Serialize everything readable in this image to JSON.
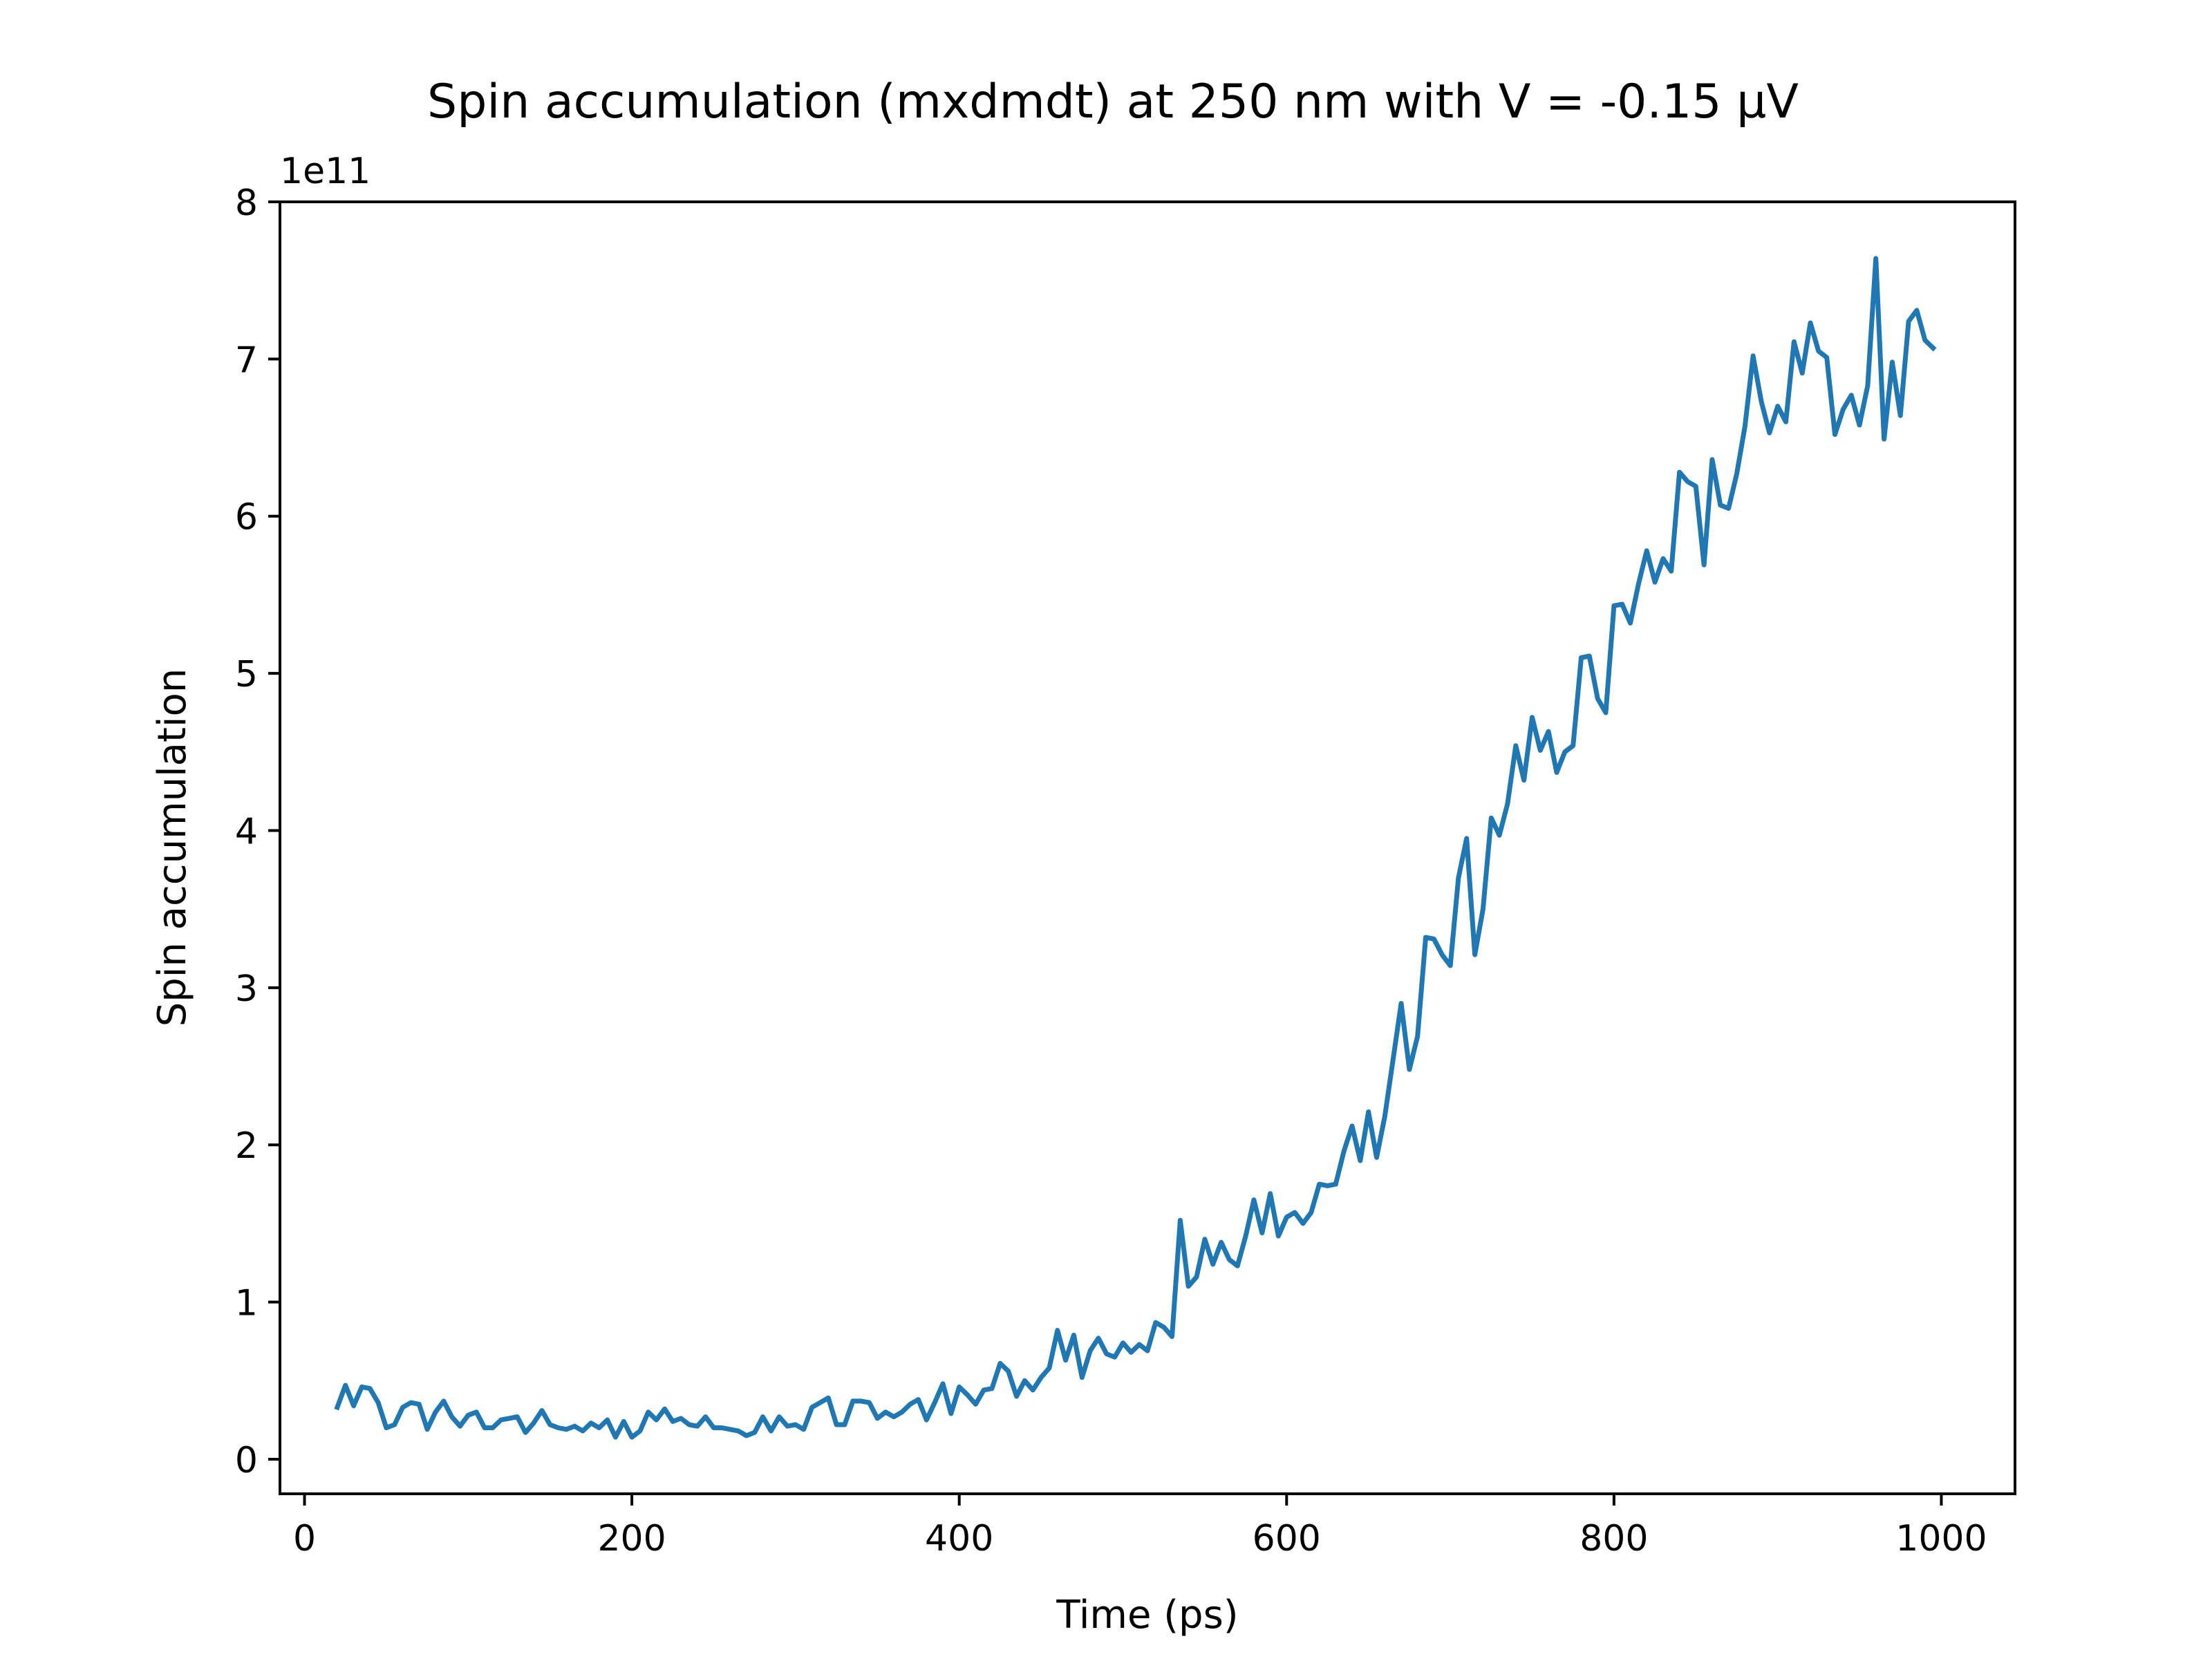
{
  "chart_data": {
    "type": "line",
    "title": "Spin accumulation (mxdmdt) at 250 nm with V = -0.15 µV",
    "xlabel": "Time (ps)",
    "ylabel": "Spin accumulation",
    "y_offset_label": "1e11",
    "xlim": [
      -15,
      1045
    ],
    "ylim": [
      -0.22,
      8.0
    ],
    "xticks": [
      0,
      200,
      400,
      600,
      800,
      1000
    ],
    "xtick_labels": [
      "0",
      "200",
      "400",
      "600",
      "800",
      "1000"
    ],
    "yticks": [
      0,
      1,
      2,
      3,
      4,
      5,
      6,
      7,
      8
    ],
    "ytick_labels": [
      "0",
      "1",
      "2",
      "3",
      "4",
      "5",
      "6",
      "7",
      "8"
    ],
    "grid": false,
    "colors": {
      "line": "#1f77b4",
      "axes": "#000000"
    },
    "series": [
      {
        "x": [
          20,
          25,
          30,
          35,
          40,
          45,
          50,
          55,
          60,
          65,
          70,
          75,
          80,
          85,
          90,
          95,
          100,
          105,
          110,
          115,
          120,
          125,
          130,
          135,
          140,
          145,
          150,
          155,
          160,
          165,
          170,
          175,
          180,
          185,
          190,
          195,
          200,
          205,
          210,
          215,
          220,
          225,
          230,
          235,
          240,
          245,
          250,
          255,
          260,
          265,
          270,
          275,
          280,
          285,
          290,
          295,
          300,
          305,
          310,
          315,
          320,
          325,
          330,
          335,
          340,
          345,
          350,
          355,
          360,
          365,
          370,
          375,
          380,
          385,
          390,
          395,
          400,
          405,
          410,
          415,
          420,
          425,
          430,
          435,
          440,
          445,
          450,
          455,
          460,
          465,
          470,
          475,
          480,
          485,
          490,
          495,
          500,
          505,
          510,
          515,
          520,
          525,
          530,
          535,
          540,
          545,
          550,
          555,
          560,
          565,
          570,
          575,
          580,
          585,
          590,
          595,
          600,
          605,
          610,
          615,
          620,
          625,
          630,
          635,
          640,
          645,
          650,
          655,
          660,
          665,
          670,
          675,
          680,
          685,
          690,
          695,
          700,
          705,
          710,
          715,
          720,
          725,
          730,
          735,
          740,
          745,
          750,
          755,
          760,
          765,
          770,
          775,
          780,
          785,
          790,
          795,
          800,
          805,
          810,
          815,
          820,
          825,
          830,
          835,
          840,
          845,
          850,
          855,
          860,
          865,
          870,
          875,
          880,
          885,
          890,
          895,
          900,
          905,
          910,
          915,
          920,
          925,
          930,
          935,
          940,
          945,
          950,
          955,
          960,
          965,
          970,
          975,
          980,
          985,
          990,
          995
        ],
        "y": [
          0.33,
          0.47,
          0.34,
          0.46,
          0.45,
          0.36,
          0.2,
          0.22,
          0.33,
          0.36,
          0.35,
          0.19,
          0.3,
          0.37,
          0.27,
          0.21,
          0.28,
          0.3,
          0.2,
          0.2,
          0.25,
          0.26,
          0.27,
          0.17,
          0.23,
          0.31,
          0.22,
          0.2,
          0.19,
          0.21,
          0.18,
          0.23,
          0.2,
          0.25,
          0.14,
          0.24,
          0.14,
          0.18,
          0.3,
          0.25,
          0.32,
          0.24,
          0.26,
          0.22,
          0.21,
          0.27,
          0.2,
          0.2,
          0.19,
          0.18,
          0.15,
          0.17,
          0.27,
          0.18,
          0.27,
          0.21,
          0.22,
          0.19,
          0.33,
          0.36,
          0.39,
          0.22,
          0.22,
          0.37,
          0.37,
          0.36,
          0.26,
          0.3,
          0.27,
          0.3,
          0.35,
          0.38,
          0.25,
          0.36,
          0.48,
          0.29,
          0.46,
          0.41,
          0.35,
          0.44,
          0.45,
          0.61,
          0.56,
          0.4,
          0.5,
          0.44,
          0.52,
          0.58,
          0.82,
          0.63,
          0.79,
          0.52,
          0.69,
          0.77,
          0.67,
          0.65,
          0.74,
          0.68,
          0.73,
          0.69,
          0.87,
          0.84,
          0.78,
          1.52,
          1.1,
          1.16,
          1.4,
          1.24,
          1.38,
          1.27,
          1.23,
          1.42,
          1.65,
          1.44,
          1.69,
          1.42,
          1.54,
          1.57,
          1.5,
          1.57,
          1.75,
          1.74,
          1.75,
          1.96,
          2.12,
          1.9,
          2.21,
          1.92,
          2.18,
          2.54,
          2.9,
          2.48,
          2.69,
          3.32,
          3.31,
          3.21,
          3.14,
          3.7,
          3.95,
          3.21,
          3.5,
          4.08,
          3.97,
          4.17,
          4.54,
          4.32,
          4.72,
          4.51,
          4.63,
          4.37,
          4.5,
          4.54,
          5.1,
          5.11,
          4.84,
          4.75,
          5.43,
          5.44,
          5.32,
          5.57,
          5.78,
          5.58,
          5.73,
          5.65,
          6.28,
          6.22,
          6.19,
          5.69,
          6.36,
          6.07,
          6.05,
          6.27,
          6.57,
          7.02,
          6.73,
          6.53,
          6.7,
          6.6,
          7.11,
          6.91,
          7.23,
          7.05,
          7.01,
          6.52,
          6.68,
          6.77,
          6.58,
          6.83,
          7.64,
          6.49,
          6.98,
          6.64,
          7.24,
          7.31,
          7.12,
          7.07
        ]
      }
    ]
  }
}
